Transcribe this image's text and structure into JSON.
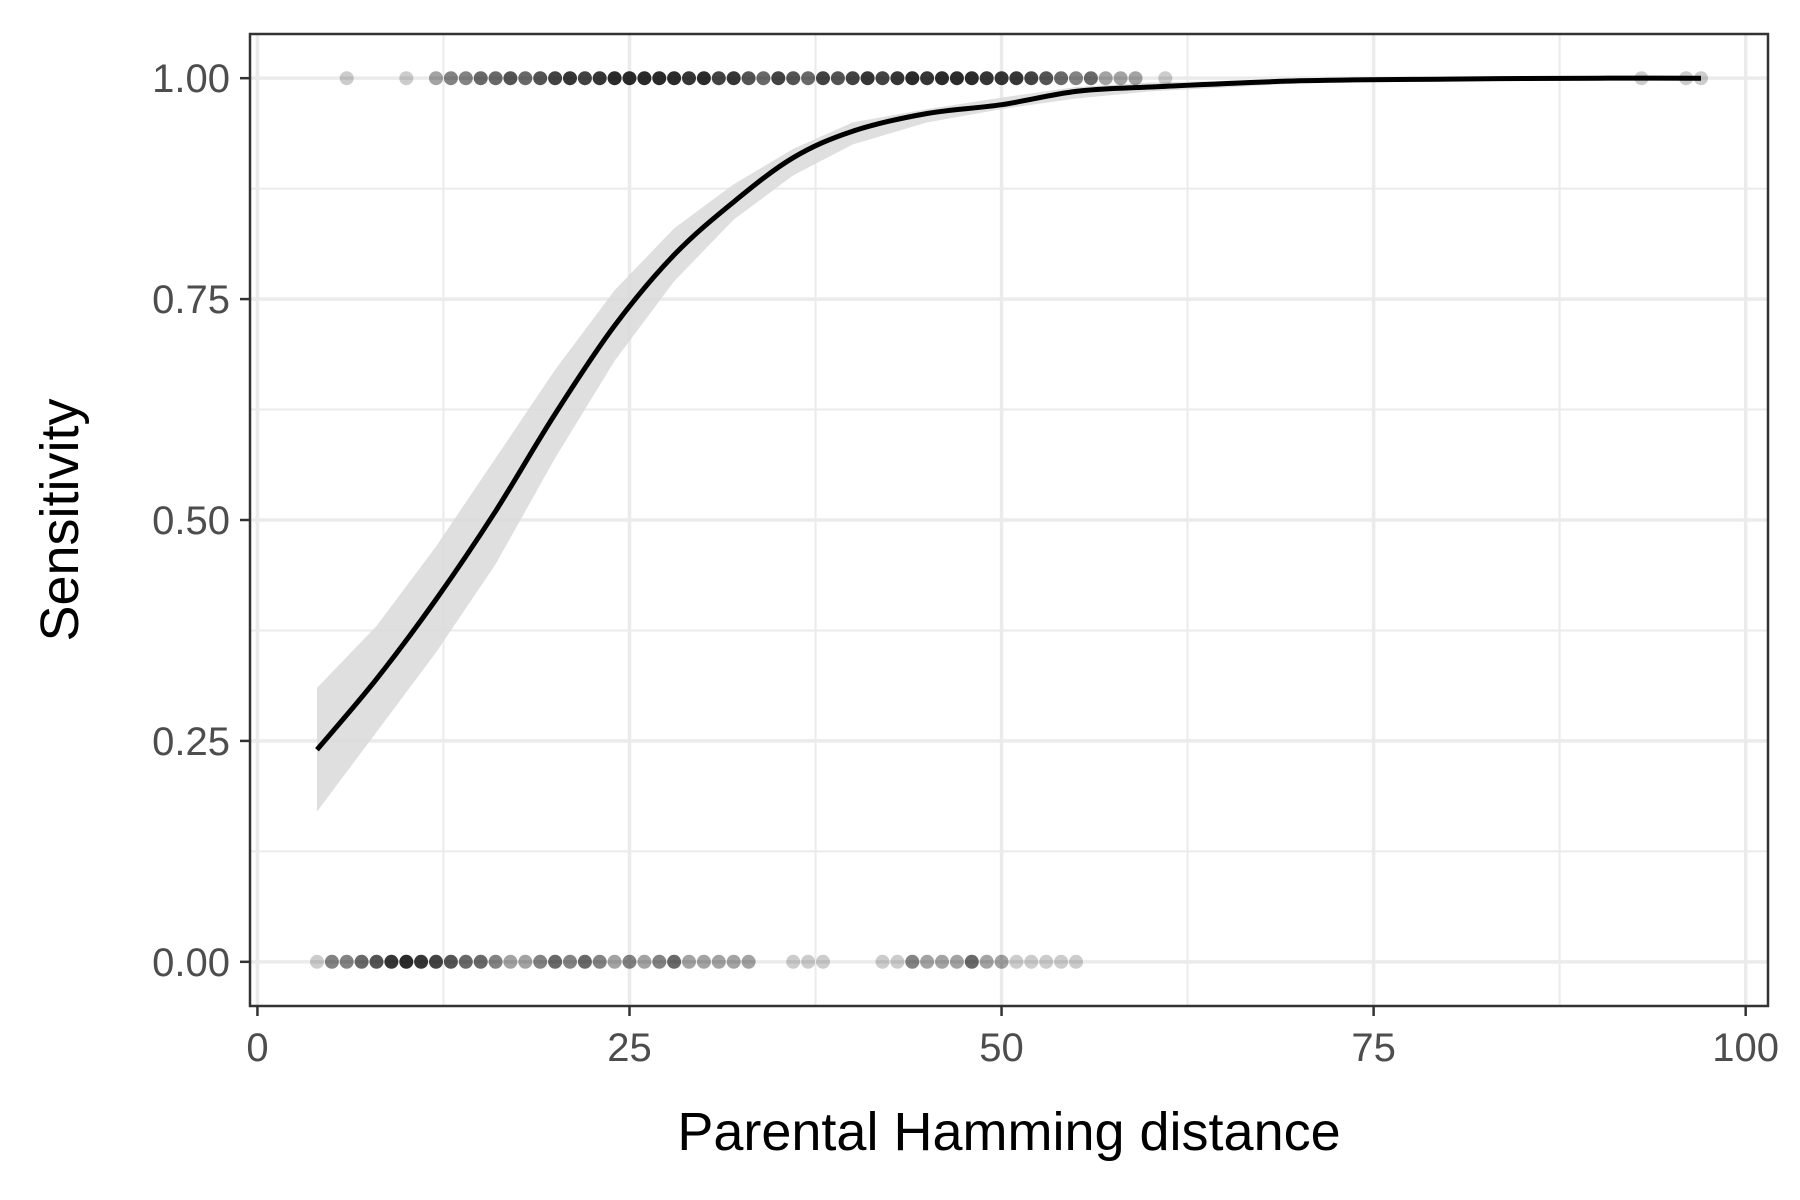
{
  "chart_data": {
    "type": "scatter",
    "title": "",
    "xlabel": "Parental Hamming distance",
    "ylabel": "Sensitivity",
    "xlim": [
      -0.5,
      101.5
    ],
    "ylim": [
      -0.05,
      1.05
    ],
    "x_ticks": [
      {
        "value": 0,
        "label": "0"
      },
      {
        "value": 25,
        "label": "25"
      },
      {
        "value": 50,
        "label": "50"
      },
      {
        "value": 75,
        "label": "75"
      },
      {
        "value": 100,
        "label": "100"
      }
    ],
    "y_ticks": [
      {
        "value": 0,
        "label": "0.00"
      },
      {
        "value": 0.25,
        "label": "0.25"
      },
      {
        "value": 0.5,
        "label": "0.50"
      },
      {
        "value": 0.75,
        "label": "0.75"
      },
      {
        "value": 1,
        "label": "1.00"
      }
    ],
    "grid": true,
    "colors": {
      "points": "#000000",
      "fit_line": "#000000",
      "ribbon": "#d9d9d9",
      "grid": "#ebebeb",
      "panel_border": "#333333"
    },
    "series": [
      {
        "type": "scatter",
        "y": 1,
        "points": [
          {
            "x": 6,
            "n": 1
          },
          {
            "x": 10,
            "n": 1
          },
          {
            "x": 12,
            "n": 2
          },
          {
            "x": 13,
            "n": 3
          },
          {
            "x": 14,
            "n": 3
          },
          {
            "x": 15,
            "n": 4
          },
          {
            "x": 16,
            "n": 4
          },
          {
            "x": 17,
            "n": 5
          },
          {
            "x": 18,
            "n": 4
          },
          {
            "x": 19,
            "n": 5
          },
          {
            "x": 20,
            "n": 6
          },
          {
            "x": 21,
            "n": 7
          },
          {
            "x": 22,
            "n": 6
          },
          {
            "x": 23,
            "n": 7
          },
          {
            "x": 24,
            "n": 8
          },
          {
            "x": 25,
            "n": 8
          },
          {
            "x": 26,
            "n": 8
          },
          {
            "x": 27,
            "n": 8
          },
          {
            "x": 28,
            "n": 8
          },
          {
            "x": 29,
            "n": 7
          },
          {
            "x": 30,
            "n": 8
          },
          {
            "x": 31,
            "n": 6
          },
          {
            "x": 32,
            "n": 7
          },
          {
            "x": 33,
            "n": 5
          },
          {
            "x": 34,
            "n": 4
          },
          {
            "x": 35,
            "n": 6
          },
          {
            "x": 36,
            "n": 5
          },
          {
            "x": 37,
            "n": 4
          },
          {
            "x": 38,
            "n": 6
          },
          {
            "x": 39,
            "n": 5
          },
          {
            "x": 40,
            "n": 6
          },
          {
            "x": 41,
            "n": 7
          },
          {
            "x": 42,
            "n": 6
          },
          {
            "x": 43,
            "n": 7
          },
          {
            "x": 44,
            "n": 8
          },
          {
            "x": 45,
            "n": 7
          },
          {
            "x": 46,
            "n": 8
          },
          {
            "x": 47,
            "n": 8
          },
          {
            "x": 48,
            "n": 8
          },
          {
            "x": 49,
            "n": 7
          },
          {
            "x": 50,
            "n": 7
          },
          {
            "x": 51,
            "n": 7
          },
          {
            "x": 52,
            "n": 6
          },
          {
            "x": 53,
            "n": 5
          },
          {
            "x": 54,
            "n": 4
          },
          {
            "x": 55,
            "n": 3
          },
          {
            "x": 56,
            "n": 4
          },
          {
            "x": 57,
            "n": 2
          },
          {
            "x": 58,
            "n": 2
          },
          {
            "x": 59,
            "n": 2
          },
          {
            "x": 61,
            "n": 1
          },
          {
            "x": 93,
            "n": 1
          },
          {
            "x": 96,
            "n": 1
          },
          {
            "x": 97,
            "n": 1
          }
        ]
      },
      {
        "type": "scatter",
        "y": 0,
        "points": [
          {
            "x": 4,
            "n": 1
          },
          {
            "x": 5,
            "n": 3
          },
          {
            "x": 6,
            "n": 3
          },
          {
            "x": 7,
            "n": 4
          },
          {
            "x": 8,
            "n": 5
          },
          {
            "x": 9,
            "n": 7
          },
          {
            "x": 10,
            "n": 8
          },
          {
            "x": 11,
            "n": 7
          },
          {
            "x": 12,
            "n": 6
          },
          {
            "x": 13,
            "n": 5
          },
          {
            "x": 14,
            "n": 4
          },
          {
            "x": 15,
            "n": 4
          },
          {
            "x": 16,
            "n": 3
          },
          {
            "x": 17,
            "n": 2
          },
          {
            "x": 18,
            "n": 2
          },
          {
            "x": 19,
            "n": 3
          },
          {
            "x": 20,
            "n": 4
          },
          {
            "x": 21,
            "n": 3
          },
          {
            "x": 22,
            "n": 4
          },
          {
            "x": 23,
            "n": 3
          },
          {
            "x": 24,
            "n": 2
          },
          {
            "x": 25,
            "n": 3
          },
          {
            "x": 26,
            "n": 2
          },
          {
            "x": 27,
            "n": 3
          },
          {
            "x": 28,
            "n": 4
          },
          {
            "x": 29,
            "n": 2
          },
          {
            "x": 30,
            "n": 2
          },
          {
            "x": 31,
            "n": 2
          },
          {
            "x": 32,
            "n": 2
          },
          {
            "x": 33,
            "n": 2
          },
          {
            "x": 36,
            "n": 1
          },
          {
            "x": 37,
            "n": 1
          },
          {
            "x": 38,
            "n": 1
          },
          {
            "x": 42,
            "n": 1
          },
          {
            "x": 43,
            "n": 1
          },
          {
            "x": 44,
            "n": 3
          },
          {
            "x": 45,
            "n": 2
          },
          {
            "x": 46,
            "n": 2
          },
          {
            "x": 47,
            "n": 2
          },
          {
            "x": 48,
            "n": 4
          },
          {
            "x": 49,
            "n": 2
          },
          {
            "x": 50,
            "n": 2
          },
          {
            "x": 51,
            "n": 1
          },
          {
            "x": 52,
            "n": 1
          },
          {
            "x": 53,
            "n": 1
          },
          {
            "x": 54,
            "n": 1
          },
          {
            "x": 55,
            "n": 1
          }
        ]
      },
      {
        "type": "line",
        "x": [
          4,
          8,
          12,
          16,
          20,
          24,
          28,
          32,
          36,
          40,
          45,
          50,
          55,
          60,
          70,
          80,
          90,
          97
        ],
        "y": [
          0.24,
          0.32,
          0.41,
          0.51,
          0.62,
          0.72,
          0.8,
          0.86,
          0.91,
          0.94,
          0.96,
          0.97,
          0.985,
          0.99,
          0.997,
          0.999,
          1.0,
          1.0
        ],
        "ci_lower": [
          0.17,
          0.26,
          0.35,
          0.45,
          0.57,
          0.68,
          0.77,
          0.84,
          0.89,
          0.925,
          0.95,
          0.965,
          0.977,
          0.985,
          0.994,
          0.998,
          0.999,
          0.999
        ],
        "ci_upper": [
          0.31,
          0.38,
          0.47,
          0.57,
          0.67,
          0.76,
          0.83,
          0.88,
          0.92,
          0.95,
          0.965,
          0.978,
          0.99,
          0.995,
          0.999,
          1.0,
          1.0,
          1.0
        ]
      }
    ]
  }
}
